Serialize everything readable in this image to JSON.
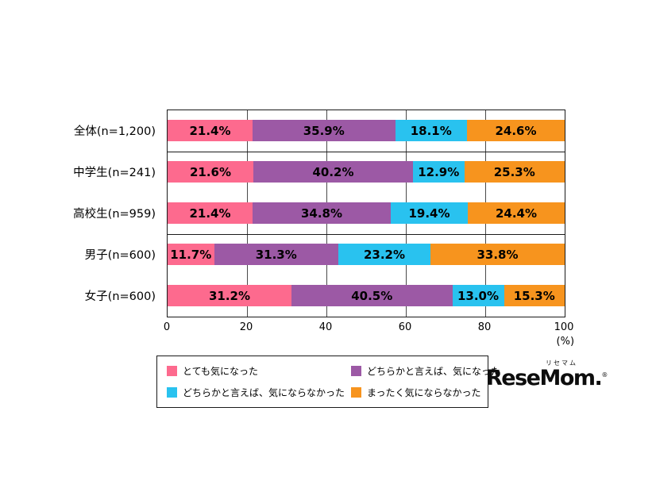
{
  "chart_data": {
    "type": "bar",
    "variant": "horizontal-stacked",
    "title": "",
    "categories": [
      "全体(n=1,200)",
      "中学生(n=241)",
      "高校生(n=959)",
      "男子(n=600)",
      "女子(n=600)"
    ],
    "groups": [
      [
        0
      ],
      [
        1,
        2
      ],
      [
        3,
        4
      ]
    ],
    "series": [
      {
        "name": "とても気になった",
        "color": "#fd6a8e",
        "values": [
          21.4,
          21.6,
          21.4,
          11.7,
          31.2
        ]
      },
      {
        "name": "どちらかと言えば、気になった",
        "color": "#9c59a5",
        "values": [
          35.9,
          40.2,
          34.8,
          31.3,
          40.5
        ]
      },
      {
        "name": "どちらかと言えば、気にならなかった",
        "color": "#29c2ef",
        "values": [
          18.1,
          12.9,
          19.4,
          23.2,
          13.0
        ]
      },
      {
        "name": "まったく気にならなかった",
        "color": "#f7941e",
        "values": [
          24.6,
          25.3,
          24.4,
          33.8,
          15.3
        ]
      }
    ],
    "value_suffix": "%",
    "x_ticks": [
      0,
      20,
      40,
      60,
      80,
      100
    ],
    "x_unit": "(%)",
    "xlim": [
      0,
      100
    ],
    "grid": "vertical",
    "legend_position": "bottom"
  },
  "logo": {
    "kana": "リセマム",
    "text": "ReseMom",
    "dot": ".",
    "reg": "®"
  }
}
